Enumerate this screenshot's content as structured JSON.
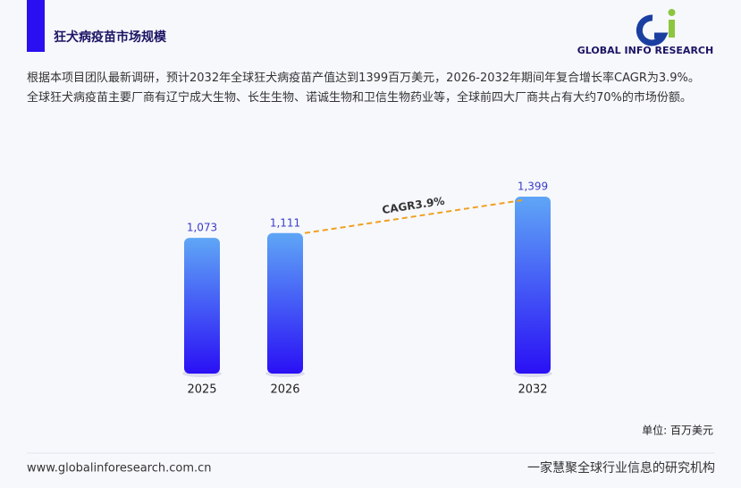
{
  "header": {
    "title": "狂犬病疫苗市场规模"
  },
  "logo": {
    "text": "GLOBAL INFO RESEARCH"
  },
  "description": "根据本项目团队最新调研，预计2032年全球狂犬病疫苗产值达到1399百万美元，2026-2032年期间年复合增长率CAGR为3.9%。 全球狂犬病疫苗主要厂商有辽宁成大生物、长生生物、诺诚生物和卫信生物药业等，全球前四大厂商共占有大约70%的市场份额。",
  "chart_data": {
    "type": "bar",
    "categories": [
      "2025",
      "2026",
      "2032"
    ],
    "values": [
      1073,
      1111,
      1399
    ],
    "value_labels": [
      "1,073",
      "1,111",
      "1,399"
    ],
    "color": "#2a10f5",
    "color_top": "#5fa6f6",
    "annotation": "CAGR3.9%",
    "unit": "单位: 百万美元"
  },
  "footer": {
    "website": "www.globalinforesearch.com.cn",
    "slogan": "一家慧聚全球行业信息的研究机构"
  }
}
